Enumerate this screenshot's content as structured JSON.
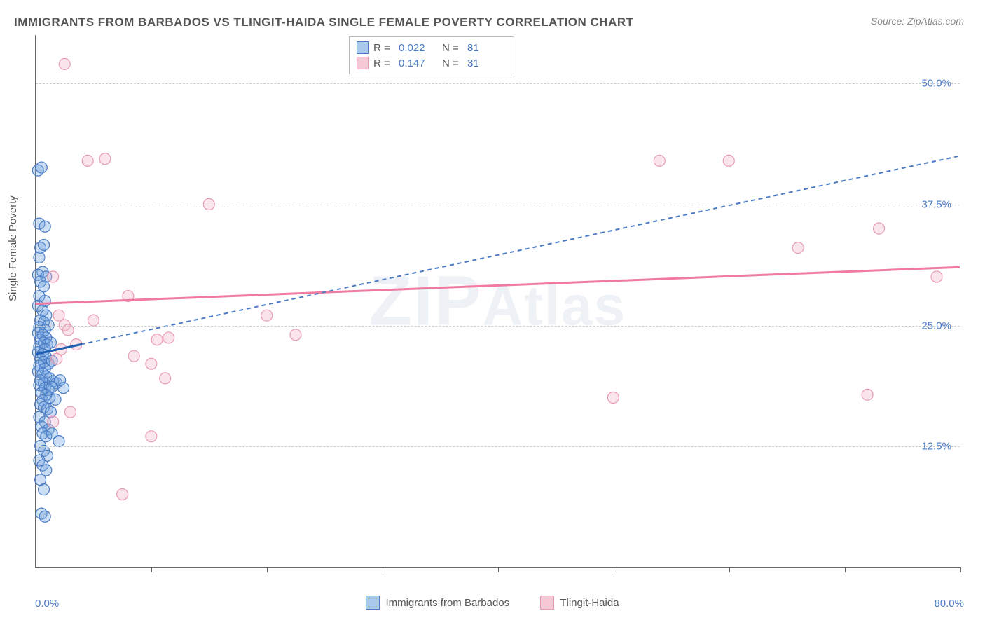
{
  "title": "IMMIGRANTS FROM BARBADOS VS TLINGIT-HAIDA SINGLE FEMALE POVERTY CORRELATION CHART",
  "source": "Source: ZipAtlas.com",
  "watermark": "ZIPAtlas",
  "ylabel": "Single Female Poverty",
  "chart": {
    "type": "scatter",
    "xlim": [
      0,
      80
    ],
    "ylim": [
      0,
      55
    ],
    "ytick_values": [
      12.5,
      25.0,
      37.5,
      50.0
    ],
    "ytick_labels": [
      "12.5%",
      "25.0%",
      "37.5%",
      "50.0%"
    ],
    "xtick_positions": [
      10,
      20,
      30,
      40,
      50,
      60,
      70,
      80
    ],
    "x_axis_labels": {
      "left": "0.0%",
      "right": "80.0%"
    },
    "background_color": "#ffffff",
    "grid_color": "#cccccc",
    "marker_radius": 8,
    "series": [
      {
        "name": "Immigrants from Barbados",
        "color_fill": "rgba(108,160,220,0.35)",
        "color_stroke": "#4a7bc4",
        "swatch_fill": "#a9c8ea",
        "swatch_border": "#4a7bc4",
        "R": 0.022,
        "N": 81,
        "trend": {
          "x1": 0,
          "y1": 22.0,
          "x2": 80,
          "y2": 42.5,
          "style": "dashed",
          "solid_extent_x": 4
        },
        "points": [
          [
            0.2,
            41.0
          ],
          [
            0.5,
            41.3
          ],
          [
            0.3,
            35.5
          ],
          [
            0.8,
            35.2
          ],
          [
            0.4,
            33.0
          ],
          [
            0.7,
            33.3
          ],
          [
            0.3,
            32.0
          ],
          [
            0.6,
            30.5
          ],
          [
            0.2,
            30.2
          ],
          [
            0.9,
            30.0
          ],
          [
            0.4,
            29.5
          ],
          [
            0.7,
            29.0
          ],
          [
            0.3,
            28.0
          ],
          [
            0.8,
            27.5
          ],
          [
            0.2,
            27.0
          ],
          [
            0.6,
            26.5
          ],
          [
            0.9,
            26.0
          ],
          [
            0.4,
            25.5
          ],
          [
            0.7,
            25.3
          ],
          [
            1.1,
            25.0
          ],
          [
            0.3,
            24.8
          ],
          [
            0.8,
            24.5
          ],
          [
            0.2,
            24.2
          ],
          [
            0.6,
            24.0
          ],
          [
            0.9,
            23.7
          ],
          [
            0.4,
            23.5
          ],
          [
            0.7,
            23.2
          ],
          [
            1.0,
            23.0
          ],
          [
            1.3,
            23.2
          ],
          [
            0.3,
            22.8
          ],
          [
            0.8,
            22.5
          ],
          [
            0.2,
            22.2
          ],
          [
            0.6,
            22.0
          ],
          [
            0.9,
            21.7
          ],
          [
            0.4,
            21.5
          ],
          [
            0.7,
            21.2
          ],
          [
            1.1,
            21.0
          ],
          [
            1.4,
            21.3
          ],
          [
            0.3,
            20.8
          ],
          [
            0.8,
            20.5
          ],
          [
            0.2,
            20.2
          ],
          [
            0.6,
            20.0
          ],
          [
            0.9,
            19.7
          ],
          [
            1.2,
            19.5
          ],
          [
            0.4,
            19.3
          ],
          [
            0.7,
            19.0
          ],
          [
            1.5,
            19.2
          ],
          [
            1.8,
            19.0
          ],
          [
            2.1,
            19.3
          ],
          [
            0.3,
            18.8
          ],
          [
            0.8,
            18.5
          ],
          [
            1.1,
            18.3
          ],
          [
            1.4,
            18.6
          ],
          [
            2.4,
            18.5
          ],
          [
            0.5,
            18.0
          ],
          [
            0.9,
            17.8
          ],
          [
            1.2,
            17.5
          ],
          [
            0.6,
            17.2
          ],
          [
            1.7,
            17.3
          ],
          [
            0.4,
            16.8
          ],
          [
            0.7,
            16.5
          ],
          [
            1.0,
            16.3
          ],
          [
            1.3,
            16.0
          ],
          [
            0.3,
            15.5
          ],
          [
            0.8,
            15.0
          ],
          [
            0.5,
            14.5
          ],
          [
            1.1,
            14.2
          ],
          [
            0.6,
            13.8
          ],
          [
            0.9,
            13.5
          ],
          [
            1.4,
            13.8
          ],
          [
            2.0,
            13.0
          ],
          [
            0.4,
            12.5
          ],
          [
            0.7,
            12.0
          ],
          [
            1.0,
            11.5
          ],
          [
            0.3,
            11.0
          ],
          [
            0.6,
            10.5
          ],
          [
            0.9,
            10.0
          ],
          [
            0.4,
            9.0
          ],
          [
            0.7,
            8.0
          ],
          [
            0.5,
            5.5
          ],
          [
            0.8,
            5.2
          ]
        ]
      },
      {
        "name": "Tlingit-Haida",
        "color_fill": "rgba(244,180,200,0.35)",
        "color_stroke": "#e89bb0",
        "swatch_fill": "#f6c8d6",
        "swatch_border": "#e89bb0",
        "R": 0.147,
        "N": 31,
        "trend": {
          "x1": 0,
          "y1": 27.2,
          "x2": 80,
          "y2": 31.0,
          "style": "solid"
        },
        "points": [
          [
            2.5,
            52.0
          ],
          [
            4.5,
            42.0
          ],
          [
            6.0,
            42.2
          ],
          [
            54.0,
            42.0
          ],
          [
            60.0,
            42.0
          ],
          [
            15.0,
            37.5
          ],
          [
            73.0,
            35.0
          ],
          [
            66.0,
            33.0
          ],
          [
            1.5,
            30.0
          ],
          [
            78.0,
            30.0
          ],
          [
            8.0,
            28.0
          ],
          [
            2.0,
            26.0
          ],
          [
            20.0,
            26.0
          ],
          [
            2.5,
            25.0
          ],
          [
            2.8,
            24.5
          ],
          [
            10.5,
            23.5
          ],
          [
            11.5,
            23.7
          ],
          [
            22.5,
            24.0
          ],
          [
            3.5,
            23.0
          ],
          [
            8.5,
            21.8
          ],
          [
            10.0,
            21.0
          ],
          [
            11.2,
            19.5
          ],
          [
            1.8,
            21.5
          ],
          [
            2.2,
            22.5
          ],
          [
            50.0,
            17.5
          ],
          [
            72.0,
            17.8
          ],
          [
            3.0,
            16.0
          ],
          [
            10.0,
            13.5
          ],
          [
            1.5,
            15.0
          ],
          [
            7.5,
            7.5
          ],
          [
            5.0,
            25.5
          ]
        ]
      }
    ]
  },
  "legend_bottom": [
    {
      "label": "Immigrants from Barbados",
      "fill": "#a9c8ea",
      "border": "#4a7bc4"
    },
    {
      "label": "Tlingit-Haida",
      "fill": "#f6c8d6",
      "border": "#e89bb0"
    }
  ]
}
